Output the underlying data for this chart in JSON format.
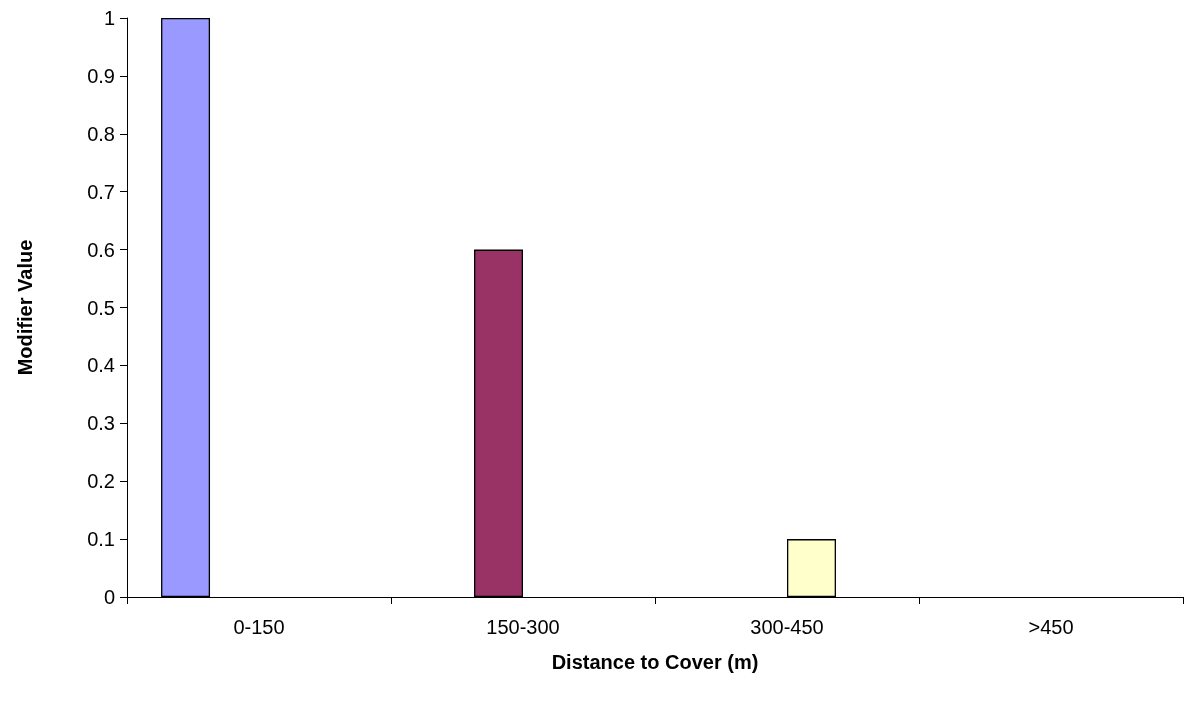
{
  "chart_data": {
    "type": "bar",
    "xlabel": "Distance to Cover (m)",
    "ylabel": "Modifier Value",
    "categories": [
      "0-150",
      "150-300",
      "300-450",
      ">450"
    ],
    "series": [
      {
        "color": "#9999ff",
        "values": [
          1,
          null,
          null,
          null
        ]
      },
      {
        "color": "#993366",
        "values": [
          null,
          0.6,
          null,
          null
        ]
      },
      {
        "color": "#ffffcc",
        "values": [
          null,
          null,
          0.1,
          null
        ]
      },
      {
        "color": "#ccffff",
        "values": [
          null,
          null,
          null,
          0
        ]
      }
    ],
    "ylim": [
      0,
      1
    ],
    "yticks": [
      0,
      0.1,
      0.2,
      0.3,
      0.4,
      0.5,
      0.6,
      0.7,
      0.8,
      0.9,
      1
    ],
    "grid": false
  }
}
